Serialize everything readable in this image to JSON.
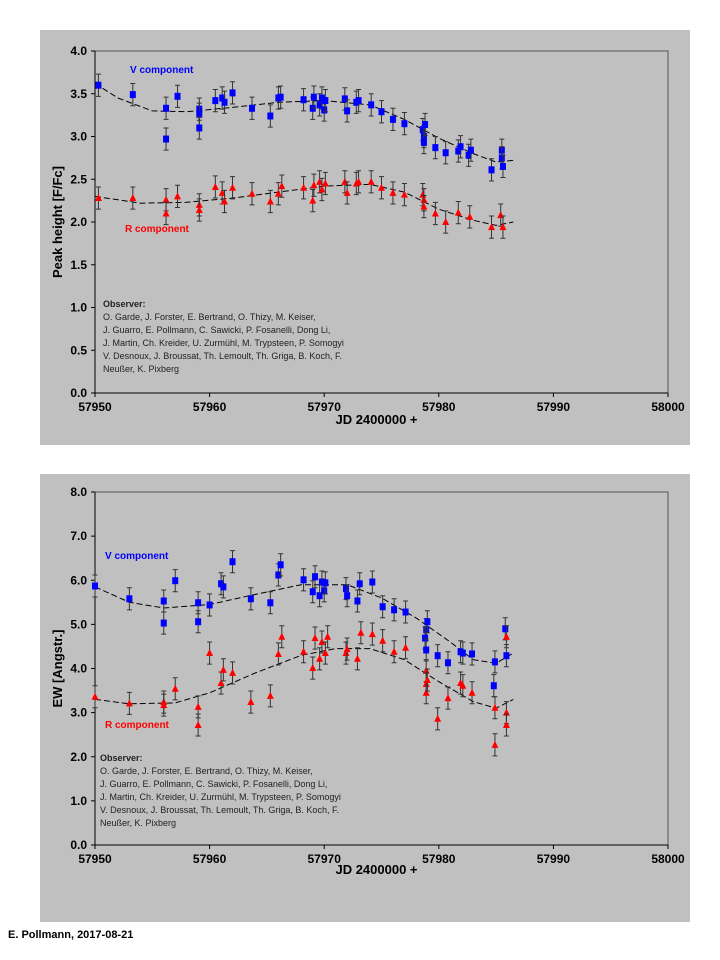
{
  "footer": "E. Pollmann, 2017-08-21",
  "colors": {
    "v": "#0000ff",
    "r": "#ff0000",
    "panel": "#c0c0c0",
    "fit": "#000000"
  },
  "observer": {
    "heading": "Observer:",
    "lines": [
      "O. Garde, J. Forster, E. Bertrand, O. Thizy, M. Keiser,",
      "J. Guarro, E. Pollmann, C. Sawicki, P. Fosanelli, Dong Li,",
      "J. Martin, Ch. Kreider, U. Zurmühl, M. Trypsteen, P. Somogyi",
      "V. Desnoux, J. Broussat, Th. Lemoult, Th. Griga, B. Koch, F.",
      "Neußer, K. Pixberg"
    ]
  },
  "chart_data": [
    {
      "type": "scatter",
      "xlabel": "JD 2400000 +",
      "ylabel": "Peak height [F/Fc]",
      "xlim": [
        57950,
        58000
      ],
      "ylim": [
        0,
        4
      ],
      "xticks": [
        "57950",
        "57960",
        "57970",
        "57980",
        "57990",
        "58000"
      ],
      "yticks": [
        "0.0",
        "0.5",
        "1.0",
        "1.5",
        "2.0",
        "2.5",
        "3.0",
        "3.5",
        "4.0"
      ],
      "grid": false,
      "series": [
        {
          "name": "V component",
          "marker": "square",
          "error": 0.13,
          "points": [
            [
              57950.3,
              3.6
            ],
            [
              57953.3,
              3.49
            ],
            [
              57956.2,
              3.33
            ],
            [
              57956.2,
              2.97
            ],
            [
              57957.2,
              3.47
            ],
            [
              57959.1,
              3.32
            ],
            [
              57959.1,
              3.26
            ],
            [
              57959.1,
              3.1
            ],
            [
              57960.5,
              3.42
            ],
            [
              57961.1,
              3.45
            ],
            [
              57961.3,
              3.4
            ],
            [
              57962.0,
              3.51
            ],
            [
              57963.7,
              3.33
            ],
            [
              57965.3,
              3.24
            ],
            [
              57966.0,
              3.45
            ],
            [
              57966.2,
              3.46
            ],
            [
              57968.2,
              3.43
            ],
            [
              57969.0,
              3.33
            ],
            [
              57969.1,
              3.46
            ],
            [
              57969.6,
              3.37
            ],
            [
              57969.8,
              3.45
            ],
            [
              57970.0,
              3.31
            ],
            [
              57970.1,
              3.42
            ],
            [
              57971.8,
              3.44
            ],
            [
              57972.0,
              3.3
            ],
            [
              57972.8,
              3.4
            ],
            [
              57973.0,
              3.42
            ],
            [
              57974.1,
              3.37
            ],
            [
              57975.0,
              3.29
            ],
            [
              57976.0,
              3.2
            ],
            [
              57977.0,
              3.15
            ],
            [
              57978.6,
              3.08
            ],
            [
              57978.7,
              3.0
            ],
            [
              57978.8,
              3.14
            ],
            [
              57978.7,
              2.93
            ],
            [
              57979.7,
              2.87
            ],
            [
              57980.6,
              2.81
            ],
            [
              57981.7,
              2.83
            ],
            [
              57981.9,
              2.88
            ],
            [
              57982.6,
              2.78
            ],
            [
              57982.8,
              2.84
            ],
            [
              57984.6,
              2.61
            ],
            [
              57985.5,
              2.84
            ],
            [
              57985.5,
              2.75
            ],
            [
              57985.6,
              2.65
            ]
          ],
          "fit": [
            [
              57950,
              3.62
            ],
            [
              57952,
              3.45
            ],
            [
              57955,
              3.3
            ],
            [
              57958,
              3.29
            ],
            [
              57962,
              3.34
            ],
            [
              57966,
              3.4
            ],
            [
              57970,
              3.42
            ],
            [
              57974,
              3.37
            ],
            [
              57977,
              3.2
            ],
            [
              57980,
              2.98
            ],
            [
              57983,
              2.8
            ],
            [
              57985,
              2.7
            ],
            [
              57986.5,
              2.72
            ]
          ]
        },
        {
          "name": "R component",
          "marker": "triangle",
          "error": 0.13,
          "points": [
            [
              57950.3,
              2.28
            ],
            [
              57953.3,
              2.28
            ],
            [
              57956.2,
              2.26
            ],
            [
              57956.2,
              2.1
            ],
            [
              57957.2,
              2.3
            ],
            [
              57959.1,
              2.2
            ],
            [
              57959.1,
              2.14
            ],
            [
              57960.5,
              2.41
            ],
            [
              57961.1,
              2.34
            ],
            [
              57961.3,
              2.24
            ],
            [
              57962.0,
              2.4
            ],
            [
              57963.7,
              2.33
            ],
            [
              57965.3,
              2.24
            ],
            [
              57966.0,
              2.33
            ],
            [
              57966.3,
              2.42
            ],
            [
              57968.2,
              2.4
            ],
            [
              57969.0,
              2.25
            ],
            [
              57969.1,
              2.43
            ],
            [
              57969.6,
              2.47
            ],
            [
              57969.8,
              2.38
            ],
            [
              57970.1,
              2.45
            ],
            [
              57971.8,
              2.47
            ],
            [
              57972.0,
              2.34
            ],
            [
              57972.8,
              2.45
            ],
            [
              57973.0,
              2.47
            ],
            [
              57974.1,
              2.47
            ],
            [
              57975.0,
              2.4
            ],
            [
              57976.0,
              2.34
            ],
            [
              57977.0,
              2.32
            ],
            [
              57978.6,
              2.32
            ],
            [
              57978.7,
              2.26
            ],
            [
              57978.7,
              2.18
            ],
            [
              57979.7,
              2.1
            ],
            [
              57980.6,
              2.0
            ],
            [
              57981.7,
              2.11
            ],
            [
              57982.7,
              2.06
            ],
            [
              57984.6,
              1.94
            ],
            [
              57985.4,
              2.08
            ],
            [
              57985.6,
              1.94
            ]
          ],
          "fit": [
            [
              57950,
              2.3
            ],
            [
              57954,
              2.22
            ],
            [
              57958,
              2.23
            ],
            [
              57962,
              2.28
            ],
            [
              57966,
              2.35
            ],
            [
              57970,
              2.42
            ],
            [
              57974,
              2.44
            ],
            [
              57977,
              2.35
            ],
            [
              57980,
              2.15
            ],
            [
              57983,
              2.02
            ],
            [
              57985,
              1.96
            ],
            [
              57986.5,
              2.0
            ]
          ]
        }
      ]
    },
    {
      "type": "scatter",
      "xlabel": "JD 2400000 +",
      "ylabel": "EW [Angstr.]",
      "xlim": [
        57950,
        58000
      ],
      "ylim": [
        0,
        8
      ],
      "xticks": [
        "57950",
        "57960",
        "57970",
        "57980",
        "57990",
        "58000"
      ],
      "yticks": [
        "0.0",
        "1.0",
        "2.0",
        "3.0",
        "4.0",
        "5.0",
        "6.0",
        "7.0",
        "8.0"
      ],
      "grid": false,
      "series": [
        {
          "name": "V component",
          "marker": "square",
          "error": 0.25,
          "points": [
            [
              57950.0,
              5.87
            ],
            [
              57953.0,
              5.58
            ],
            [
              57956.0,
              5.53
            ],
            [
              57956.0,
              5.03
            ],
            [
              57957.0,
              5.99
            ],
            [
              57959.0,
              5.49
            ],
            [
              57959.0,
              5.06
            ],
            [
              57960.0,
              5.44
            ],
            [
              57961.0,
              5.92
            ],
            [
              57961.2,
              5.85
            ],
            [
              57962.0,
              6.42
            ],
            [
              57963.6,
              5.58
            ],
            [
              57965.3,
              5.49
            ],
            [
              57966.0,
              6.12
            ],
            [
              57966.2,
              6.35
            ],
            [
              57968.2,
              6.01
            ],
            [
              57969.0,
              5.74
            ],
            [
              57969.2,
              6.08
            ],
            [
              57969.6,
              5.65
            ],
            [
              57969.8,
              5.96
            ],
            [
              57970.0,
              5.76
            ],
            [
              57970.1,
              5.94
            ],
            [
              57971.9,
              5.81
            ],
            [
              57972.0,
              5.65
            ],
            [
              57972.9,
              5.53
            ],
            [
              57973.1,
              5.92
            ],
            [
              57974.2,
              5.96
            ],
            [
              57975.1,
              5.4
            ],
            [
              57976.1,
              5.33
            ],
            [
              57977.1,
              5.28
            ],
            [
              57978.9,
              4.88
            ],
            [
              57979.0,
              5.06
            ],
            [
              57978.8,
              4.69
            ],
            [
              57978.9,
              4.42
            ],
            [
              57979.9,
              4.29
            ],
            [
              57980.8,
              4.13
            ],
            [
              57981.9,
              4.38
            ],
            [
              57982.1,
              4.35
            ],
            [
              57982.9,
              4.33
            ],
            [
              57984.9,
              4.15
            ],
            [
              57984.8,
              3.61
            ],
            [
              57985.8,
              4.9
            ],
            [
              57985.9,
              4.29
            ]
          ],
          "fit": [
            [
              57950,
              5.85
            ],
            [
              57953,
              5.5
            ],
            [
              57956,
              5.37
            ],
            [
              57960,
              5.45
            ],
            [
              57964,
              5.68
            ],
            [
              57968,
              5.9
            ],
            [
              57972,
              5.9
            ],
            [
              57975,
              5.6
            ],
            [
              57978,
              5.15
            ],
            [
              57981,
              4.6
            ],
            [
              57983,
              4.2
            ],
            [
              57985,
              4.12
            ],
            [
              57986.5,
              4.35
            ]
          ]
        },
        {
          "name": "R component",
          "marker": "triangle",
          "error": 0.25,
          "points": [
            [
              57950.0,
              3.36
            ],
            [
              57953.0,
              3.21
            ],
            [
              57956.0,
              3.24
            ],
            [
              57956.0,
              3.17
            ],
            [
              57957.0,
              3.54
            ],
            [
              57959.0,
              3.13
            ],
            [
              57959.0,
              2.72
            ],
            [
              57960.0,
              4.35
            ],
            [
              57961.0,
              3.67
            ],
            [
              57961.2,
              3.97
            ],
            [
              57962.0,
              3.9
            ],
            [
              57963.6,
              3.24
            ],
            [
              57965.3,
              3.38
            ],
            [
              57966.0,
              4.33
            ],
            [
              57966.3,
              4.72
            ],
            [
              57968.2,
              4.38
            ],
            [
              57969.0,
              4.01
            ],
            [
              57969.2,
              4.69
            ],
            [
              57969.6,
              4.22
            ],
            [
              57969.8,
              4.6
            ],
            [
              57970.1,
              4.35
            ],
            [
              57970.3,
              4.72
            ],
            [
              57971.9,
              4.35
            ],
            [
              57972.0,
              4.44
            ],
            [
              57972.9,
              4.22
            ],
            [
              57973.2,
              4.81
            ],
            [
              57974.2,
              4.78
            ],
            [
              57975.1,
              4.63
            ],
            [
              57976.1,
              4.38
            ],
            [
              57977.1,
              4.47
            ],
            [
              57978.9,
              3.95
            ],
            [
              57978.9,
              3.65
            ],
            [
              57978.9,
              3.45
            ],
            [
              57979.0,
              3.74
            ],
            [
              57979.9,
              2.86
            ],
            [
              57980.8,
              3.33
            ],
            [
              57981.9,
              3.67
            ],
            [
              57982.1,
              3.61
            ],
            [
              57982.9,
              3.45
            ],
            [
              57984.9,
              3.11
            ],
            [
              57984.9,
              2.27
            ],
            [
              57985.9,
              4.72
            ],
            [
              57985.9,
              3.0
            ],
            [
              57985.9,
              2.72
            ]
          ],
          "fit": [
            [
              57950,
              3.3
            ],
            [
              57953,
              3.2
            ],
            [
              57957,
              3.22
            ],
            [
              57960,
              3.45
            ],
            [
              57964,
              3.9
            ],
            [
              57968,
              4.3
            ],
            [
              57971,
              4.45
            ],
            [
              57974,
              4.45
            ],
            [
              57977,
              4.2
            ],
            [
              57980,
              3.7
            ],
            [
              57983,
              3.25
            ],
            [
              57985,
              3.1
            ],
            [
              57986.5,
              3.3
            ]
          ]
        }
      ]
    }
  ]
}
